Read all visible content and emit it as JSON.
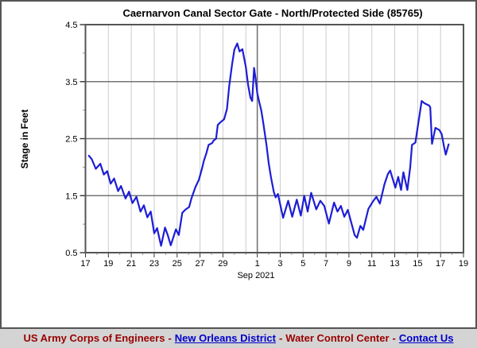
{
  "chart_data": {
    "type": "line",
    "title": "Caernarvon Canal Sector Gate - North/Protected Side (85765)",
    "ylabel": "Stage in Feet",
    "xlabel": "Sep 2021",
    "ylim": [
      0.5,
      4.5
    ],
    "y_major_ticks": [
      "4.5",
      "3.5",
      "2.5",
      "1.5",
      "0.5"
    ],
    "y_major_values": [
      4.5,
      3.5,
      2.5,
      1.5,
      0.5
    ],
    "y_minor_values": [
      1,
      2,
      3,
      4
    ],
    "y_gridline_values": [
      1.5,
      2.5,
      3.5
    ],
    "x_start": "Aug 17 2021",
    "x_end": "Sep 19 2021",
    "x_range_days": 33,
    "x_ticks": [
      {
        "day": 0,
        "label": "17"
      },
      {
        "day": 2,
        "label": "19"
      },
      {
        "day": 4,
        "label": "21"
      },
      {
        "day": 6,
        "label": "23"
      },
      {
        "day": 8,
        "label": "25"
      },
      {
        "day": 10,
        "label": "27"
      },
      {
        "day": 12,
        "label": "29"
      },
      {
        "day": 15,
        "label": "1"
      },
      {
        "day": 17,
        "label": "3"
      },
      {
        "day": 19,
        "label": "5"
      },
      {
        "day": 21,
        "label": "7"
      },
      {
        "day": 23,
        "label": "9"
      },
      {
        "day": 25,
        "label": "11"
      },
      {
        "day": 27,
        "label": "13"
      },
      {
        "day": 29,
        "label": "15"
      },
      {
        "day": 31,
        "label": "17"
      },
      {
        "day": 33,
        "label": "19"
      }
    ],
    "x_gridline_days": [
      2,
      4,
      6,
      8,
      10,
      12,
      14,
      15,
      17,
      19,
      21,
      23,
      25,
      27,
      29,
      31
    ],
    "x_dark_gridline_day": 15,
    "grid_on": true,
    "legend": "none",
    "line_color": "#1d1dd6",
    "grid_light_color": "#cccccc",
    "grid_dark_color": "#747474",
    "axis_color": "#555555",
    "tick_color": "#333333",
    "series": [
      {
        "name": "Stage",
        "points": [
          [
            0.3,
            2.2
          ],
          [
            0.55,
            2.14
          ],
          [
            0.9,
            1.97
          ],
          [
            1.3,
            2.06
          ],
          [
            1.6,
            1.87
          ],
          [
            1.9,
            1.93
          ],
          [
            2.2,
            1.71
          ],
          [
            2.5,
            1.8
          ],
          [
            2.85,
            1.58
          ],
          [
            3.1,
            1.67
          ],
          [
            3.5,
            1.45
          ],
          [
            3.8,
            1.57
          ],
          [
            4.1,
            1.37
          ],
          [
            4.45,
            1.48
          ],
          [
            4.8,
            1.22
          ],
          [
            5.1,
            1.33
          ],
          [
            5.4,
            1.12
          ],
          [
            5.7,
            1.22
          ],
          [
            6.0,
            0.84
          ],
          [
            6.25,
            0.93
          ],
          [
            6.6,
            0.62
          ],
          [
            6.95,
            0.94
          ],
          [
            7.2,
            0.8
          ],
          [
            7.45,
            0.63
          ],
          [
            7.9,
            0.91
          ],
          [
            8.15,
            0.81
          ],
          [
            8.45,
            1.2
          ],
          [
            8.75,
            1.26
          ],
          [
            9.05,
            1.3
          ],
          [
            9.25,
            1.45
          ],
          [
            9.6,
            1.65
          ],
          [
            9.9,
            1.78
          ],
          [
            10.15,
            1.96
          ],
          [
            10.35,
            2.12
          ],
          [
            10.55,
            2.24
          ],
          [
            10.75,
            2.39
          ],
          [
            11.05,
            2.42
          ],
          [
            11.2,
            2.47
          ],
          [
            11.4,
            2.5
          ],
          [
            11.55,
            2.74
          ],
          [
            11.8,
            2.79
          ],
          [
            12.1,
            2.84
          ],
          [
            12.35,
            3.02
          ],
          [
            12.55,
            3.42
          ],
          [
            12.8,
            3.8
          ],
          [
            13.0,
            4.06
          ],
          [
            13.25,
            4.17
          ],
          [
            13.45,
            4.03
          ],
          [
            13.7,
            4.07
          ],
          [
            14.0,
            3.76
          ],
          [
            14.2,
            3.44
          ],
          [
            14.4,
            3.22
          ],
          [
            14.55,
            3.16
          ],
          [
            14.72,
            3.74
          ],
          [
            14.85,
            3.55
          ],
          [
            15.0,
            3.3
          ],
          [
            15.15,
            3.16
          ],
          [
            15.35,
            2.99
          ],
          [
            15.5,
            2.81
          ],
          [
            15.65,
            2.6
          ],
          [
            15.8,
            2.39
          ],
          [
            16.0,
            2.07
          ],
          [
            16.2,
            1.82
          ],
          [
            16.45,
            1.56
          ],
          [
            16.6,
            1.47
          ],
          [
            16.8,
            1.53
          ],
          [
            17.25,
            1.11
          ],
          [
            17.7,
            1.41
          ],
          [
            18.05,
            1.13
          ],
          [
            18.45,
            1.43
          ],
          [
            18.8,
            1.15
          ],
          [
            19.1,
            1.5
          ],
          [
            19.4,
            1.22
          ],
          [
            19.7,
            1.55
          ],
          [
            20.15,
            1.26
          ],
          [
            20.5,
            1.41
          ],
          [
            20.85,
            1.32
          ],
          [
            21.25,
            1.01
          ],
          [
            21.7,
            1.38
          ],
          [
            22.0,
            1.22
          ],
          [
            22.3,
            1.32
          ],
          [
            22.6,
            1.13
          ],
          [
            22.9,
            1.25
          ],
          [
            23.5,
            0.81
          ],
          [
            23.7,
            0.76
          ],
          [
            24.0,
            0.97
          ],
          [
            24.25,
            0.9
          ],
          [
            24.7,
            1.27
          ],
          [
            25.1,
            1.4
          ],
          [
            25.4,
            1.48
          ],
          [
            25.7,
            1.36
          ],
          [
            26.1,
            1.7
          ],
          [
            26.4,
            1.88
          ],
          [
            26.6,
            1.94
          ],
          [
            27.05,
            1.64
          ],
          [
            27.3,
            1.83
          ],
          [
            27.55,
            1.6
          ],
          [
            27.75,
            1.91
          ],
          [
            28.1,
            1.6
          ],
          [
            28.35,
            2.0
          ],
          [
            28.5,
            2.39
          ],
          [
            28.8,
            2.43
          ],
          [
            29.0,
            2.7
          ],
          [
            29.35,
            3.16
          ],
          [
            29.6,
            3.12
          ],
          [
            30.0,
            3.08
          ],
          [
            30.1,
            3.05
          ],
          [
            30.25,
            2.41
          ],
          [
            30.55,
            2.69
          ],
          [
            30.9,
            2.65
          ],
          [
            31.1,
            2.58
          ],
          [
            31.3,
            2.36
          ],
          [
            31.45,
            2.22
          ],
          [
            31.7,
            2.4
          ]
        ]
      }
    ]
  },
  "footer": {
    "separator": "-",
    "text_color": "#990000",
    "link_color": "#0000cc",
    "bg_color": "#d4d4d4",
    "items": [
      {
        "text": "US Army Corps of Engineers",
        "type": "text"
      },
      {
        "text": "New Orleans District",
        "type": "link"
      },
      {
        "text": "Water Control Center",
        "type": "text"
      },
      {
        "text": "Contact Us",
        "type": "link"
      }
    ]
  }
}
